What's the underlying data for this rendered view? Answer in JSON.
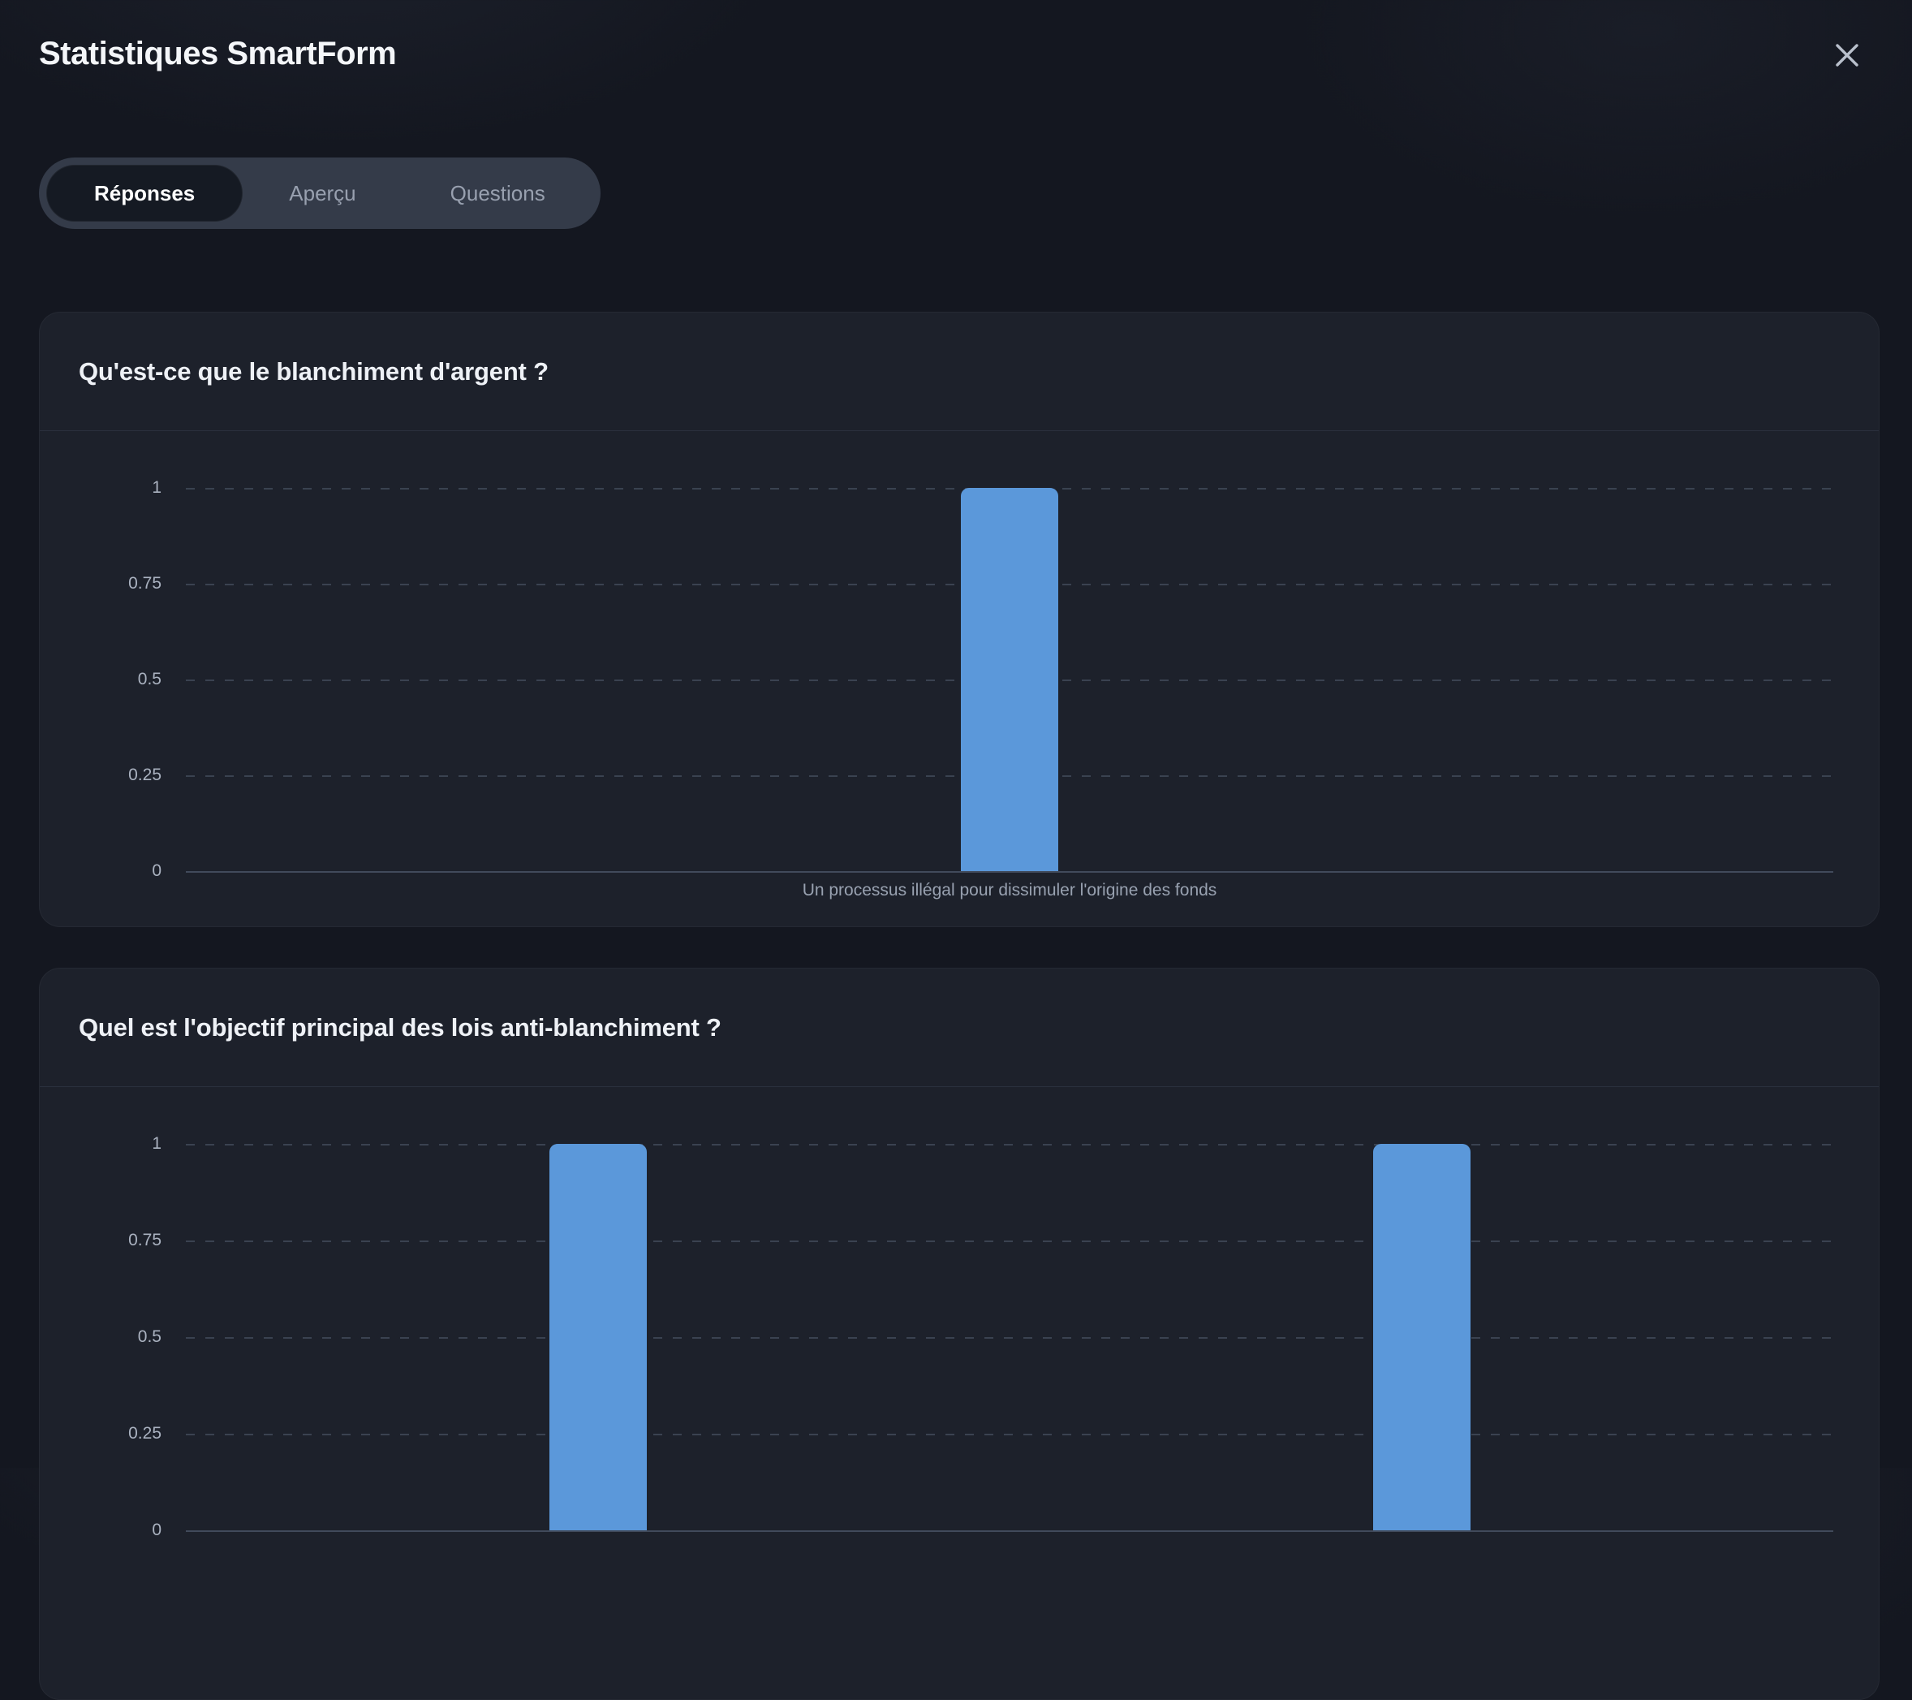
{
  "header": {
    "title": "Statistiques SmartForm",
    "close_icon": "x-close-icon"
  },
  "tabs": [
    {
      "label": "Réponses",
      "active": true
    },
    {
      "label": "Aperçu",
      "active": false
    },
    {
      "label": "Questions",
      "active": false
    }
  ],
  "colors": {
    "page_bg": "#141720",
    "card_bg": "#1d212b",
    "bar": "#5b98da",
    "grid": "#3a4250",
    "axis": "#414a5b",
    "tick_text": "#aab2c0",
    "active_tab_bg": "#151a23",
    "tab_bar_bg": "#343b49"
  },
  "chart_data": [
    {
      "type": "bar",
      "title": "Qu'est-ce que le blanchiment d'argent ?",
      "categories": [
        "Un processus illégal pour dissimuler l'origine des fonds"
      ],
      "values": [
        1
      ],
      "ylim": [
        0,
        1
      ],
      "yticks": [
        1,
        0.75,
        0.5,
        0.25,
        0
      ],
      "grid": "horizontal-dashed",
      "legend": "none",
      "bar_color": "#5b98da"
    },
    {
      "type": "bar",
      "title": "Quel est l'objectif principal des lois anti-blanchiment ?",
      "categories": [
        "",
        ""
      ],
      "values": [
        1,
        1
      ],
      "ylim": [
        0,
        1
      ],
      "yticks": [
        1,
        0.75,
        0.5,
        0.25,
        0
      ],
      "grid": "horizontal-dashed",
      "legend": "none",
      "bar_color": "#5b98da",
      "clipped_at_bottom": true
    }
  ]
}
